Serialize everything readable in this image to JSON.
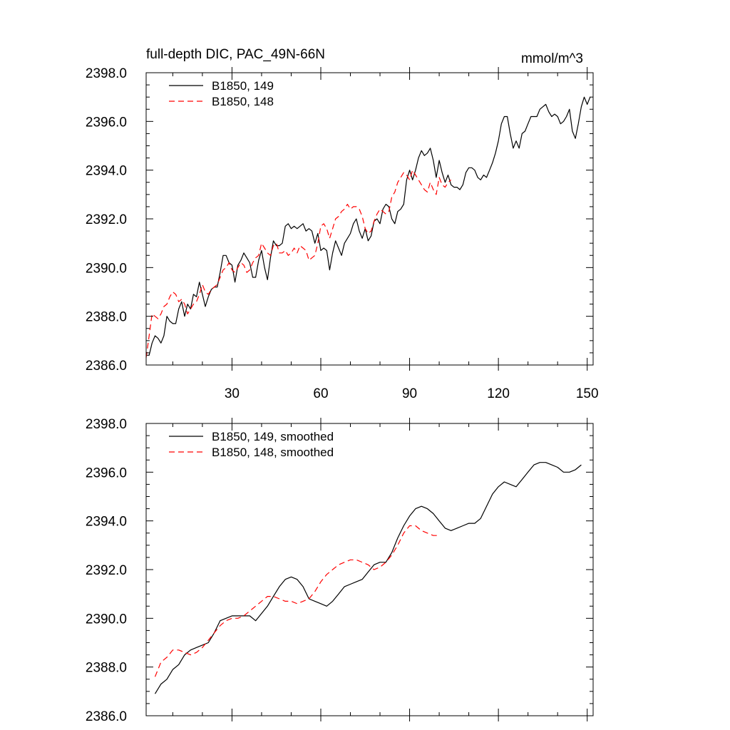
{
  "chart_data": [
    {
      "type": "line",
      "title": "full-depth DIC, PAC_49N-66N",
      "units_label": "mmol/m^3",
      "xlim": [
        1,
        152
      ],
      "ylim": [
        2386.0,
        2398.0
      ],
      "x_ticks": [
        30,
        60,
        90,
        120,
        150
      ],
      "x_tick_labels": [
        "30",
        "60",
        "90",
        "120",
        "150"
      ],
      "y_ticks": [
        2386.0,
        2388.0,
        2390.0,
        2392.0,
        2394.0,
        2396.0,
        2398.0
      ],
      "y_tick_labels": [
        "2386.0",
        "2388.0",
        "2390.0",
        "2392.0",
        "2394.0",
        "2396.0",
        "2398.0"
      ],
      "legend_position": "top-left",
      "series": [
        {
          "name": "B1850, 149",
          "color": "#000000",
          "dash": "solid",
          "x": [
            1,
            2,
            3,
            4,
            5,
            6,
            7,
            8,
            9,
            10,
            11,
            12,
            13,
            14,
            15,
            16,
            17,
            18,
            19,
            20,
            21,
            22,
            23,
            24,
            25,
            26,
            27,
            28,
            29,
            30,
            31,
            32,
            33,
            34,
            35,
            36,
            37,
            38,
            39,
            40,
            41,
            42,
            43,
            44,
            45,
            46,
            47,
            48,
            49,
            50,
            51,
            52,
            53,
            54,
            55,
            56,
            57,
            58,
            59,
            60,
            61,
            62,
            63,
            64,
            65,
            66,
            67,
            68,
            69,
            70,
            71,
            72,
            73,
            74,
            75,
            76,
            77,
            78,
            79,
            80,
            81,
            82,
            83,
            84,
            85,
            86,
            87,
            88,
            89,
            90,
            91,
            92,
            93,
            94,
            95,
            96,
            97,
            98,
            99,
            100,
            101,
            102,
            103,
            104,
            105,
            106,
            107,
            108,
            109,
            110,
            111,
            112,
            113,
            114,
            115,
            116,
            117,
            118,
            119,
            120,
            121,
            122,
            123,
            124,
            125,
            126,
            127,
            128,
            129,
            130,
            131,
            132,
            133,
            134,
            135,
            136,
            137,
            138,
            139,
            140,
            141,
            142,
            143,
            144,
            145,
            146,
            147,
            148,
            149,
            150,
            151
          ],
          "values": [
            2386.4,
            2386.4,
            2386.9,
            2387.2,
            2387.1,
            2386.9,
            2387.2,
            2388.0,
            2387.8,
            2387.7,
            2387.7,
            2388.3,
            2388.6,
            2388.0,
            2388.5,
            2388.3,
            2388.9,
            2388.8,
            2389.4,
            2388.9,
            2388.4,
            2388.8,
            2389.1,
            2389.2,
            2389.2,
            2389.8,
            2390.5,
            2390.5,
            2390.2,
            2390.1,
            2389.4,
            2390.1,
            2390.3,
            2390.6,
            2390.4,
            2390.2,
            2389.6,
            2389.6,
            2390.3,
            2390.7,
            2390.0,
            2389.5,
            2390.4,
            2391.1,
            2390.9,
            2390.9,
            2391.0,
            2391.7,
            2391.8,
            2391.6,
            2391.7,
            2391.6,
            2391.7,
            2391.8,
            2391.5,
            2391.6,
            2391.5,
            2391.0,
            2391.4,
            2390.7,
            2390.8,
            2390.7,
            2389.9,
            2390.6,
            2391.1,
            2390.8,
            2390.5,
            2391.0,
            2391.2,
            2391.4,
            2391.8,
            2392.0,
            2391.5,
            2391.2,
            2391.6,
            2391.1,
            2391.3,
            2391.9,
            2392.0,
            2391.8,
            2392.4,
            2392.6,
            2392.5,
            2392.0,
            2391.8,
            2392.3,
            2392.4,
            2392.6,
            2393.6,
            2394.0,
            2393.6,
            2394.0,
            2394.5,
            2394.8,
            2394.6,
            2394.7,
            2394.9,
            2394.4,
            2393.7,
            2394.4,
            2393.9,
            2393.5,
            2393.8,
            2393.4,
            2393.3,
            2393.3,
            2393.2,
            2393.4,
            2393.9,
            2394.1,
            2394.1,
            2394.0,
            2393.7,
            2393.6,
            2393.8,
            2393.7,
            2394.0,
            2394.3,
            2394.7,
            2395.2,
            2395.9,
            2396.2,
            2396.2,
            2395.5,
            2394.9,
            2395.2,
            2394.9,
            2395.5,
            2395.6,
            2395.9,
            2396.2,
            2396.2,
            2396.2,
            2396.5,
            2396.6,
            2396.7,
            2396.4,
            2396.2,
            2396.3,
            2396.2,
            2395.9,
            2396.0,
            2396.2,
            2396.5,
            2395.6,
            2395.3,
            2395.9,
            2396.6,
            2397.0,
            2396.7,
            2397.0
          ]
        },
        {
          "name": "B1850, 148",
          "color": "#ff0000",
          "dash": "dashed",
          "x": [
            1,
            2,
            3,
            4,
            5,
            6,
            7,
            8,
            9,
            10,
            11,
            12,
            13,
            14,
            15,
            16,
            17,
            18,
            19,
            20,
            21,
            22,
            23,
            24,
            25,
            26,
            27,
            28,
            29,
            30,
            31,
            32,
            33,
            34,
            35,
            36,
            37,
            38,
            39,
            40,
            41,
            42,
            43,
            44,
            45,
            46,
            47,
            48,
            49,
            50,
            51,
            52,
            53,
            54,
            55,
            56,
            57,
            58,
            59,
            60,
            61,
            62,
            63,
            64,
            65,
            66,
            67,
            68,
            69,
            70,
            71,
            72,
            73,
            74,
            75,
            76,
            77,
            78,
            79,
            80,
            81,
            82,
            83,
            84,
            85,
            86,
            87,
            88,
            89,
            90,
            91,
            92,
            93,
            94,
            95,
            96,
            97,
            98,
            99,
            100,
            101,
            102,
            103,
            104
          ],
          "values": [
            2386.3,
            2387.2,
            2388.1,
            2388.0,
            2387.9,
            2388.1,
            2388.4,
            2388.5,
            2388.8,
            2389.0,
            2388.9,
            2388.6,
            2388.7,
            2388.5,
            2388.1,
            2388.3,
            2388.5,
            2388.6,
            2388.9,
            2389.3,
            2389.0,
            2388.9,
            2389.1,
            2389.2,
            2389.3,
            2389.6,
            2389.9,
            2390.0,
            2390.2,
            2389.9,
            2389.8,
            2390.0,
            2390.2,
            2390.1,
            2389.8,
            2389.9,
            2390.2,
            2390.4,
            2390.5,
            2391.0,
            2390.8,
            2390.6,
            2390.5,
            2390.9,
            2391.0,
            2390.6,
            2390.6,
            2390.7,
            2390.5,
            2390.6,
            2390.8,
            2390.6,
            2390.9,
            2390.8,
            2390.7,
            2390.3,
            2390.4,
            2390.5,
            2391.0,
            2391.7,
            2391.8,
            2391.6,
            2391.2,
            2391.6,
            2392.0,
            2392.1,
            2392.3,
            2392.4,
            2392.6,
            2392.4,
            2392.5,
            2392.5,
            2392.4,
            2392.1,
            2391.6,
            2391.4,
            2391.5,
            2391.9,
            2392.2,
            2392.4,
            2392.3,
            2392.2,
            2392.3,
            2392.9,
            2393.1,
            2393.5,
            2393.7,
            2393.9,
            2393.8,
            2393.6,
            2394.0,
            2393.8,
            2393.6,
            2393.4,
            2393.2,
            2393.1,
            2393.5,
            2393.2,
            2393.0,
            2393.7,
            2393.4,
            2393.3,
            2393.5,
            2393.6
          ]
        }
      ]
    },
    {
      "type": "line",
      "title": "",
      "xlim": [
        1,
        152
      ],
      "ylim": [
        2386.0,
        2398.0
      ],
      "x_ticks": [
        30,
        60,
        90,
        120,
        150
      ],
      "x_tick_labels": [],
      "y_ticks": [
        2386.0,
        2388.0,
        2390.0,
        2392.0,
        2394.0,
        2396.0,
        2398.0
      ],
      "y_tick_labels": [
        "2386.0",
        "2388.0",
        "2390.0",
        "2392.0",
        "2394.0",
        "2396.0",
        "2398.0"
      ],
      "legend_position": "top-left",
      "series": [
        {
          "name": "B1850, 149, smoothed",
          "color": "#000000",
          "dash": "solid",
          "x": [
            4,
            6,
            8,
            10,
            12,
            14,
            16,
            18,
            20,
            22,
            24,
            26,
            28,
            30,
            32,
            34,
            36,
            38,
            40,
            42,
            44,
            46,
            48,
            50,
            52,
            54,
            56,
            58,
            60,
            62,
            64,
            66,
            68,
            70,
            72,
            74,
            76,
            78,
            80,
            82,
            84,
            86,
            88,
            90,
            92,
            94,
            96,
            98,
            100,
            102,
            104,
            106,
            108,
            110,
            112,
            114,
            116,
            118,
            120,
            122,
            124,
            126,
            128,
            130,
            132,
            134,
            136,
            138,
            140,
            142,
            144,
            146,
            148
          ],
          "values": [
            2386.9,
            2387.3,
            2387.5,
            2387.9,
            2388.1,
            2388.5,
            2388.7,
            2388.8,
            2388.9,
            2389.0,
            2389.4,
            2389.9,
            2390.0,
            2390.1,
            2390.1,
            2390.1,
            2390.1,
            2389.9,
            2390.2,
            2390.5,
            2390.9,
            2391.3,
            2391.6,
            2391.7,
            2391.6,
            2391.3,
            2390.8,
            2390.7,
            2390.6,
            2390.5,
            2390.7,
            2391.0,
            2391.3,
            2391.4,
            2391.5,
            2391.6,
            2391.9,
            2392.2,
            2392.3,
            2392.3,
            2392.7,
            2393.3,
            2393.8,
            2394.2,
            2394.5,
            2394.6,
            2394.5,
            2394.3,
            2394.0,
            2393.7,
            2393.6,
            2393.7,
            2393.8,
            2393.9,
            2393.9,
            2394.1,
            2394.6,
            2395.1,
            2395.4,
            2395.6,
            2395.5,
            2395.4,
            2395.7,
            2396.0,
            2396.3,
            2396.4,
            2396.4,
            2396.3,
            2396.2,
            2396.0,
            2396.0,
            2396.1,
            2396.3
          ]
        },
        {
          "name": "B1850, 148, smoothed",
          "color": "#ff0000",
          "dash": "dashed",
          "x": [
            4,
            6,
            8,
            10,
            12,
            14,
            16,
            18,
            20,
            22,
            24,
            26,
            28,
            30,
            32,
            34,
            36,
            38,
            40,
            42,
            44,
            46,
            48,
            50,
            52,
            54,
            56,
            58,
            60,
            62,
            64,
            66,
            68,
            70,
            72,
            74,
            76,
            78,
            80,
            82,
            84,
            86,
            88,
            90,
            92,
            94,
            96,
            98,
            100
          ],
          "values": [
            2387.6,
            2388.2,
            2388.4,
            2388.7,
            2388.7,
            2388.6,
            2388.5,
            2388.6,
            2388.8,
            2389.1,
            2389.4,
            2389.7,
            2389.9,
            2390.0,
            2390.0,
            2390.1,
            2390.3,
            2390.5,
            2390.7,
            2390.9,
            2390.9,
            2390.8,
            2390.7,
            2390.7,
            2390.6,
            2390.7,
            2390.8,
            2391.1,
            2391.5,
            2391.8,
            2392.0,
            2392.2,
            2392.3,
            2392.4,
            2392.4,
            2392.3,
            2392.2,
            2392.0,
            2392.1,
            2392.3,
            2392.6,
            2393.0,
            2393.5,
            2393.8,
            2393.8,
            2393.6,
            2393.5,
            2393.4,
            2393.4
          ]
        }
      ]
    }
  ]
}
